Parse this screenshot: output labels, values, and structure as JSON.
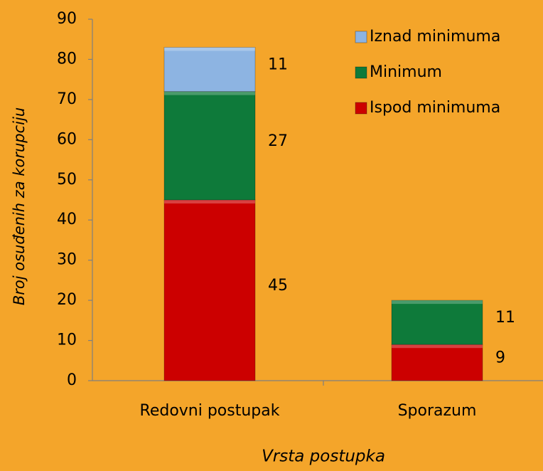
{
  "chart_data": {
    "type": "stacked_bar",
    "x_label": "Vrsta postupka",
    "y_label": "Broj osuđenih za korupciju",
    "categories": [
      "Redovni postupak",
      "Sporazum"
    ],
    "series": [
      {
        "name": "Ispod minimuma",
        "color": "#cc0000",
        "values": [
          45,
          9
        ]
      },
      {
        "name": "Minimum",
        "color": "#0e7a3a",
        "values": [
          27,
          11
        ]
      },
      {
        "name": "Iznad minimuma",
        "color": "#8db4e2",
        "values": [
          11,
          null
        ]
      }
    ],
    "ylim": [
      0,
      90
    ],
    "yticks": [
      0,
      10,
      20,
      30,
      40,
      50,
      60,
      70,
      80,
      90
    ],
    "grid": false,
    "legend": "top-right"
  }
}
